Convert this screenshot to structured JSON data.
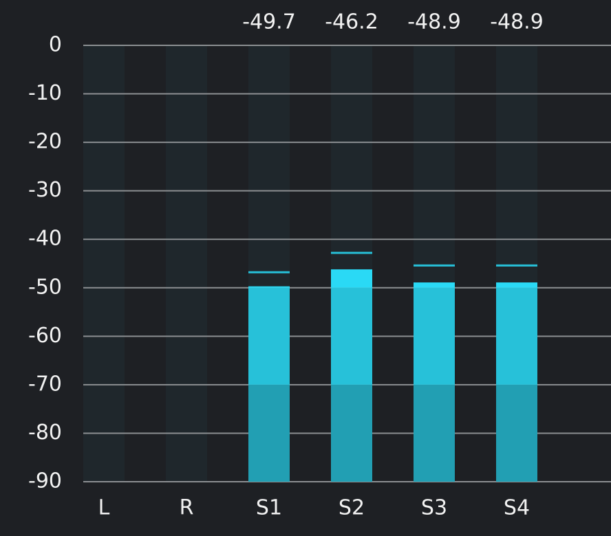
{
  "chart_data": {
    "type": "meter",
    "categories": [
      "L",
      "R",
      "S1",
      "S2",
      "S3",
      "S4"
    ],
    "values": [
      null,
      null,
      -49.7,
      -46.2,
      -48.9,
      -48.9
    ],
    "peaks": [
      null,
      null,
      -46.8,
      -42.8,
      -45.4,
      -45.4
    ],
    "ylim": [
      -90,
      0
    ],
    "yticks": [
      0,
      -10,
      -20,
      -30,
      -40,
      -50,
      -60,
      -70,
      -80,
      -90
    ],
    "grid": true,
    "color_zones": [
      {
        "from": -90,
        "to": -70,
        "color": "#229fb3"
      },
      {
        "from": -70,
        "to": -50,
        "color": "#27c1d9"
      },
      {
        "from": -50,
        "to": 0,
        "color": "#2ad9f5"
      }
    ],
    "peak_color": "#27c1d9"
  }
}
